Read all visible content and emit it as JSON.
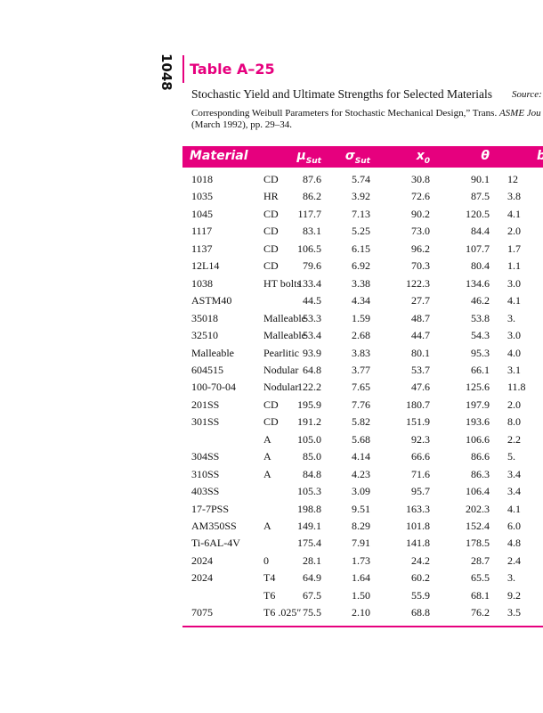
{
  "page_number": "1048",
  "header": {
    "title": "Table A–25",
    "caption_line1": "Stochastic Yield and Ultimate Strengths for Selected Materials",
    "caption_source": "Source:",
    "caption_line2": "Corresponding Weibull Parameters for Stochastic Mechanical Design,” Trans.",
    "caption_line2_italic": "ASME Jou",
    "caption_line3": "(March 1992), pp. 29–34."
  },
  "table": {
    "columns": [
      {
        "symbol": "Material",
        "sub": null
      },
      {
        "symbol": "μ",
        "sub": "Sut"
      },
      {
        "symbol": "σ",
        "sub": "Sut"
      },
      {
        "symbol": "x",
        "sub": "0"
      },
      {
        "symbol": "θ",
        "sub": null
      },
      {
        "symbol": "b",
        "sub": null
      }
    ],
    "rows": [
      [
        "1018",
        "CD",
        "87.6",
        "5.74",
        "30.8",
        "90.1",
        "12"
      ],
      [
        "1035",
        "HR",
        "86.2",
        "3.92",
        "72.6",
        "87.5",
        "3.8"
      ],
      [
        "1045",
        "CD",
        "117.7",
        "7.13",
        "90.2",
        "120.5",
        "4.1"
      ],
      [
        "1117",
        "CD",
        "83.1",
        "5.25",
        "73.0",
        "84.4",
        "2.0"
      ],
      [
        "1137",
        "CD",
        "106.5",
        "6.15",
        "96.2",
        "107.7",
        "1.7"
      ],
      [
        "12L14",
        "CD",
        "79.6",
        "6.92",
        "70.3",
        "80.4",
        "1.1"
      ],
      [
        "1038",
        "HT bolts",
        "133.4",
        "3.38",
        "122.3",
        "134.6",
        "3.0"
      ],
      [
        "ASTM40",
        null,
        "44.5",
        "4.34",
        "27.7",
        "46.2",
        "4.1"
      ],
      [
        "35018",
        "Malleable",
        "53.3",
        "1.59",
        "48.7",
        "53.8",
        "3."
      ],
      [
        "32510",
        "Malleable",
        "53.4",
        "2.68",
        "44.7",
        "54.3",
        "3.0"
      ],
      [
        "Malleable",
        "Pearlitic",
        "93.9",
        "3.83",
        "80.1",
        "95.3",
        "4.0"
      ],
      [
        "604515",
        "Nodular",
        "64.8",
        "3.77",
        "53.7",
        "66.1",
        "3.1"
      ],
      [
        "100-70-04",
        "Nodular",
        "122.2",
        "7.65",
        "47.6",
        "125.6",
        "11.8"
      ],
      [
        "201SS",
        "CD",
        "195.9",
        "7.76",
        "180.7",
        "197.9",
        "2.0"
      ],
      [
        "301SS",
        "CD",
        "191.2",
        "5.82",
        "151.9",
        "193.6",
        "8.0"
      ],
      [
        null,
        "A",
        "105.0",
        "5.68",
        "92.3",
        "106.6",
        "2.2"
      ],
      [
        "304SS",
        "A",
        "85.0",
        "4.14",
        "66.6",
        "86.6",
        "5."
      ],
      [
        "310SS",
        "A",
        "84.8",
        "4.23",
        "71.6",
        "86.3",
        "3.4"
      ],
      [
        "403SS",
        null,
        "105.3",
        "3.09",
        "95.7",
        "106.4",
        "3.4"
      ],
      [
        "17-7PSS",
        null,
        "198.8",
        "9.51",
        "163.3",
        "202.3",
        "4.1"
      ],
      [
        "AM350SS",
        "A",
        "149.1",
        "8.29",
        "101.8",
        "152.4",
        "6.0"
      ],
      [
        "Ti-6AL-4V",
        null,
        "175.4",
        "7.91",
        "141.8",
        "178.5",
        "4.8"
      ],
      [
        "2024",
        "0",
        "28.1",
        "1.73",
        "24.2",
        "28.7",
        "2.4"
      ],
      [
        "2024",
        "T4",
        "64.9",
        "1.64",
        "60.2",
        "65.5",
        "3."
      ],
      [
        null,
        "T6",
        "67.5",
        "1.50",
        "55.9",
        "68.1",
        "9.2"
      ],
      [
        "7075",
        "T6 .025″",
        "75.5",
        "2.10",
        "68.8",
        "76.2",
        "3.5"
      ]
    ]
  }
}
